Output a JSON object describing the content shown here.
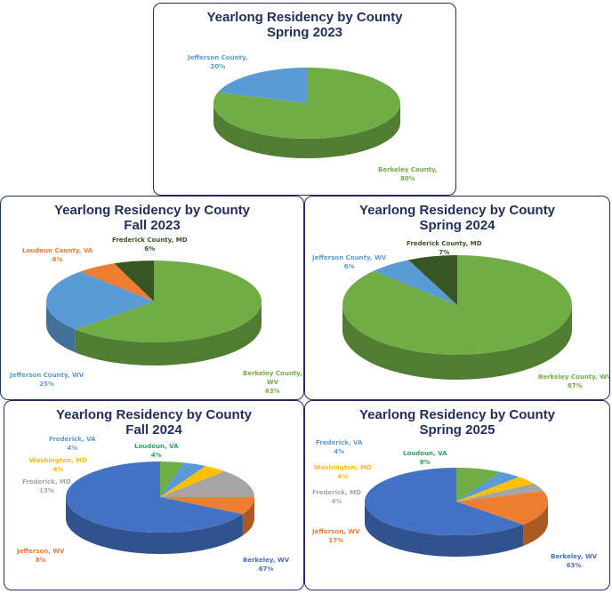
{
  "chart_data": [
    {
      "type": "pie",
      "style": "3d",
      "title": "Yearlong Residency by County",
      "subtitle": "Spring 2023",
      "categories": [
        "Berkeley County",
        "Jefferson County"
      ],
      "values": [
        80,
        20
      ],
      "labels": [
        "Berkeley County, 80%",
        "Jefferson County, 20%"
      ],
      "colors": [
        "#70ad47",
        "#5b9bd5"
      ],
      "legend": "none"
    },
    {
      "type": "pie",
      "style": "3d",
      "title": "Yearlong Residency by County",
      "subtitle": "Fall 2023",
      "categories": [
        "Berkeley County, WV",
        "Jefferson County, WV",
        "Loudoun County, VA",
        "Frederick County, MD"
      ],
      "values": [
        63,
        25,
        6,
        6
      ],
      "colors": [
        "#70ad47",
        "#5b9bd5",
        "#ed7d31",
        "#375623"
      ],
      "legend": "none"
    },
    {
      "type": "pie",
      "style": "3d",
      "title": "Yearlong Residency by County",
      "subtitle": "Spring 2024",
      "categories": [
        "Berkeley County, WV",
        "Jefferson County, WV",
        "Frederick County, MD"
      ],
      "values": [
        87,
        6,
        7
      ],
      "colors": [
        "#70ad47",
        "#5b9bd5",
        "#375623"
      ],
      "legend": "none"
    },
    {
      "type": "pie",
      "style": "3d",
      "title": "Yearlong Residency by County",
      "subtitle": "Fall 2024",
      "categories": [
        "Berkeley, WV",
        "Jefferson, WV",
        "Frederick, MD",
        "Washington, MD",
        "Frederick, VA",
        "Loudoun, VA"
      ],
      "values": [
        67,
        8,
        13,
        4,
        4,
        4
      ],
      "colors": [
        "#4472c4",
        "#ed7d31",
        "#a5a5a5",
        "#ffc000",
        "#5b9bd5",
        "#70ad47"
      ],
      "legend": "none"
    },
    {
      "type": "pie",
      "style": "3d",
      "title": "Yearlong Residency by County",
      "subtitle": "Spring 2025",
      "categories": [
        "Berkeley, WV",
        "Jefferson, WV",
        "Frederick, MD",
        "Washington, MD",
        "Frederick, VA",
        "Loudoun, VA"
      ],
      "values": [
        63,
        17,
        4,
        4,
        4,
        8
      ],
      "colors": [
        "#4472c4",
        "#ed7d31",
        "#a5a5a5",
        "#ffc000",
        "#5b9bd5",
        "#70ad47"
      ],
      "legend": "none"
    }
  ],
  "charts": {
    "c1": {
      "title_line1": "Yearlong Residency by County",
      "title_line2": "Spring 2023",
      "labels": [
        {
          "name": "Berkeley County,",
          "pct": "80%"
        },
        {
          "name": "Jefferson County,",
          "pct": "20%"
        }
      ]
    },
    "c2": {
      "title_line1": "Yearlong Residency by County",
      "title_line2": "Fall 2023",
      "labels": [
        {
          "name": "Berkeley County,",
          "name2": "WV",
          "pct": "63%"
        },
        {
          "name": "Jefferson County, WV",
          "pct": "25%"
        },
        {
          "name": "Loudoun County, VA",
          "pct": "6%"
        },
        {
          "name": "Frederick County, MD",
          "pct": "6%"
        }
      ]
    },
    "c3": {
      "title_line1": "Yearlong Residency by County",
      "title_line2": "Spring 2024",
      "labels": [
        {
          "name": "Berkeley County, WV",
          "pct": "87%"
        },
        {
          "name": "Jefferson County, WV",
          "pct": "6%"
        },
        {
          "name": "Frederick County, MD",
          "pct": "7%"
        }
      ]
    },
    "c4": {
      "title_line1": "Yearlong Residency by County",
      "title_line2": "Fall 2024",
      "labels": [
        {
          "name": "Berkeley, WV",
          "pct": "67%"
        },
        {
          "name": "Jefferson, WV",
          "pct": "8%"
        },
        {
          "name": "Frederick, MD",
          "pct": "13%"
        },
        {
          "name": "Washington, MD",
          "pct": "4%"
        },
        {
          "name": "Frederick, VA",
          "pct": "4%"
        },
        {
          "name": "Loudoun, VA",
          "pct": "4%"
        }
      ]
    },
    "c5": {
      "title_line1": "Yearlong Residency by County",
      "title_line2": "Spring 2025",
      "labels": [
        {
          "name": "Berkeley, WV",
          "pct": "63%"
        },
        {
          "name": "Jefferson, WV",
          "pct": "17%"
        },
        {
          "name": "Frederick, MD",
          "pct": "4%"
        },
        {
          "name": "Washington, MD",
          "pct": "4%"
        },
        {
          "name": "Frederick, VA",
          "pct": "4%"
        },
        {
          "name": "Loudoun, VA",
          "pct": "8%"
        }
      ]
    }
  }
}
